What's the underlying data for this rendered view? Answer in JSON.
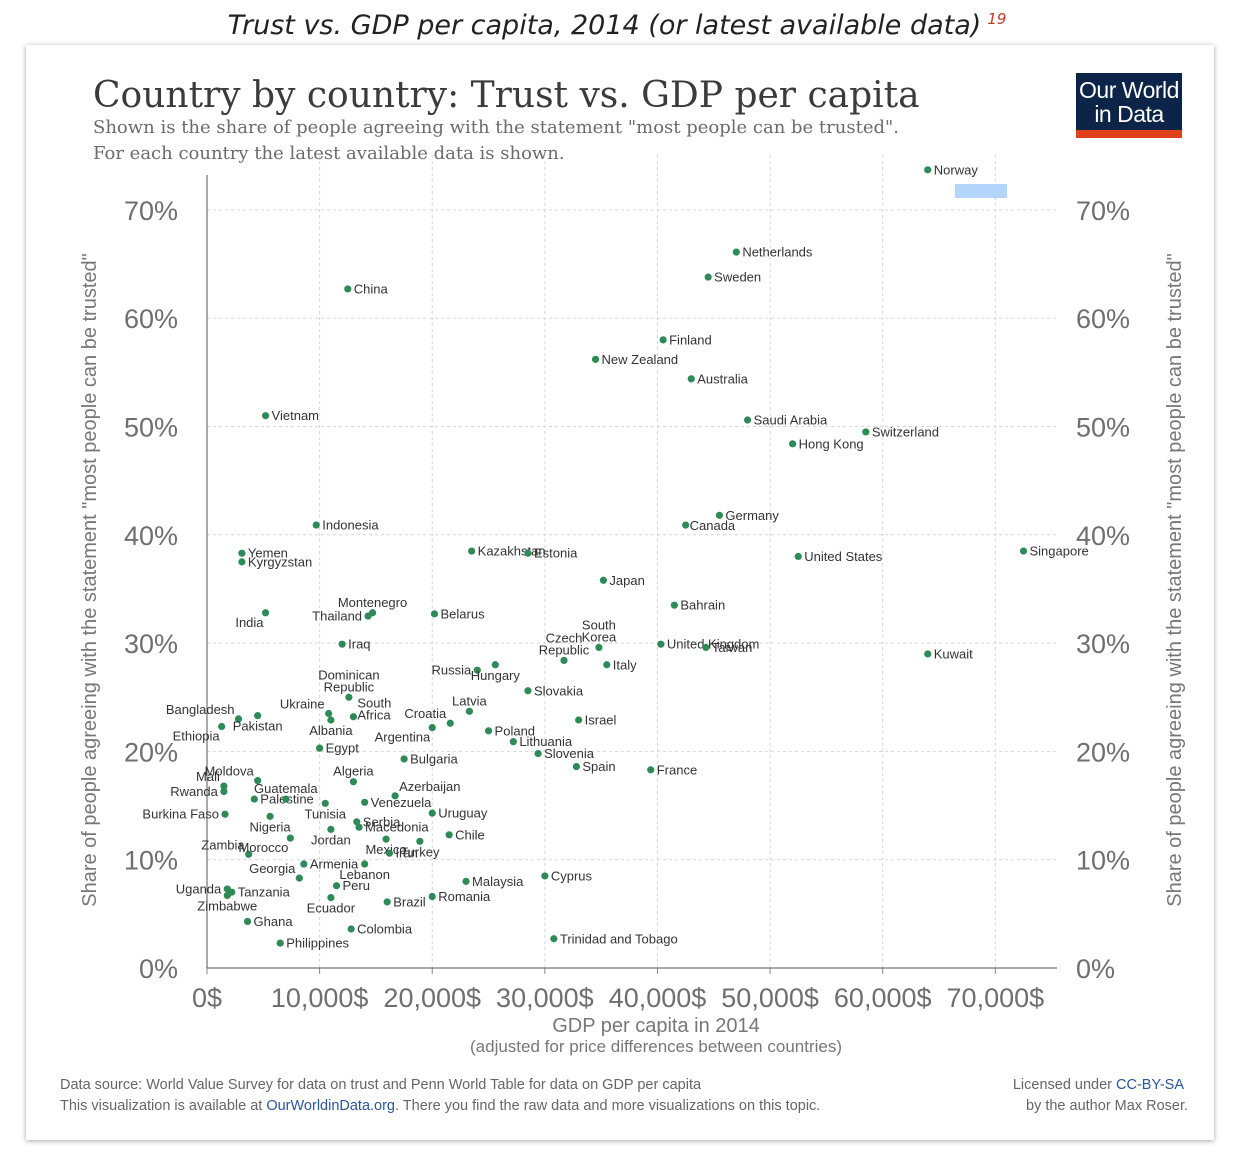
{
  "caption": {
    "text": "Trust vs. GDP per capita, 2014 (or latest available data)",
    "footnote": "19"
  },
  "logo": {
    "line1": "Our World",
    "line2": "in Data",
    "bg_color": "#0b2447",
    "accent_color": "#e0401c"
  },
  "footer": {
    "source": "Data source: World Value Survey for data on trust and Penn World Table for data on GDP per capita",
    "available_prefix": "This visualization is available at ",
    "available_link": "OurWorldinData.org",
    "available_suffix": ". There you find the raw data and more visualizations on this topic.",
    "license_prefix": "Licensed under ",
    "license_link": "CC-BY-SA",
    "author": "by the author Max Roser."
  },
  "chart_data": {
    "type": "scatter",
    "title": "Country by country: Trust vs. GDP per capita",
    "subtitle_lines": [
      "Shown is the share of people agreeing with the statement \"most people can be trusted\".",
      "For each country the latest available data is shown."
    ],
    "xlabel": "GDP per capita in 2014",
    "xlabel_note": "(adjusted for price differences between countries)",
    "ylabel": "Share of people agreeing with the statement \"most people can be trusted\"",
    "xlim": [
      0,
      75000
    ],
    "ylim": [
      0,
      70
    ],
    "x_ticks": [
      0,
      10000,
      20000,
      30000,
      40000,
      50000,
      60000,
      70000
    ],
    "x_tick_labels": [
      "0$",
      "10,000$",
      "20,000$",
      "30,000$",
      "40,000$",
      "50,000$",
      "60,000$",
      "70,000$"
    ],
    "y_ticks": [
      0,
      10,
      20,
      30,
      40,
      50,
      60,
      70
    ],
    "y_tick_labels": [
      "0%",
      "10%",
      "20%",
      "30%",
      "40%",
      "50%",
      "60%",
      "70%"
    ],
    "grid": true,
    "point_color": "#2e8b57",
    "points": [
      {
        "label": "Norway",
        "x": 64000,
        "y": 73.7
      },
      {
        "label": "Netherlands",
        "x": 47000,
        "y": 66.1
      },
      {
        "label": "Sweden",
        "x": 44500,
        "y": 63.8
      },
      {
        "label": "China",
        "x": 12500,
        "y": 62.7
      },
      {
        "label": "Finland",
        "x": 40500,
        "y": 58.0
      },
      {
        "label": "New Zealand",
        "x": 34500,
        "y": 56.2
      },
      {
        "label": "Australia",
        "x": 43000,
        "y": 54.4
      },
      {
        "label": "Vietnam",
        "x": 5200,
        "y": 51.0
      },
      {
        "label": "Saudi Arabia",
        "x": 48000,
        "y": 50.6
      },
      {
        "label": "Switzerland",
        "x": 58500,
        "y": 49.5
      },
      {
        "label": "Hong Kong",
        "x": 52000,
        "y": 48.4
      },
      {
        "label": "Germany",
        "x": 45500,
        "y": 41.8
      },
      {
        "label": "Canada",
        "x": 42500,
        "y": 40.9
      },
      {
        "label": "Indonesia",
        "x": 9700,
        "y": 40.9
      },
      {
        "label": "Yemen",
        "x": 3100,
        "y": 38.3
      },
      {
        "label": "Kyrgyzstan",
        "x": 3100,
        "y": 37.5
      },
      {
        "label": "Kazakhstan",
        "x": 23500,
        "y": 38.5
      },
      {
        "label": "Estonia",
        "x": 28500,
        "y": 38.3
      },
      {
        "label": "United States",
        "x": 52500,
        "y": 38.0
      },
      {
        "label": "Singapore",
        "x": 72500,
        "y": 38.5
      },
      {
        "label": "Japan",
        "x": 35200,
        "y": 35.8
      },
      {
        "label": "Bahrain",
        "x": 41500,
        "y": 33.5
      },
      {
        "label": "India",
        "x": 5200,
        "y": 32.8
      },
      {
        "label": "Thailand",
        "x": 14300,
        "y": 32.5
      },
      {
        "label": "Montenegro",
        "x": 14700,
        "y": 32.8
      },
      {
        "label": "Belarus",
        "x": 20200,
        "y": 32.7
      },
      {
        "label": "Iraq",
        "x": 12000,
        "y": 29.9
      },
      {
        "label": "South Korea",
        "x": 34800,
        "y": 29.6
      },
      {
        "label": "Czech Republic",
        "x": 31700,
        "y": 28.4
      },
      {
        "label": "United Kingdom",
        "x": 40300,
        "y": 29.9
      },
      {
        "label": "Taiwan",
        "x": 44300,
        "y": 29.6
      },
      {
        "label": "Kuwait",
        "x": 64000,
        "y": 29.0
      },
      {
        "label": "Italy",
        "x": 35500,
        "y": 28.0
      },
      {
        "label": "Russia",
        "x": 24000,
        "y": 27.5
      },
      {
        "label": "Hungary",
        "x": 25600,
        "y": 28.0
      },
      {
        "label": "Dominican Republic",
        "x": 12600,
        "y": 25.0
      },
      {
        "label": "Slovakia",
        "x": 28500,
        "y": 25.6
      },
      {
        "label": "Bangladesh",
        "x": 2800,
        "y": 23.0
      },
      {
        "label": "Ukraine",
        "x": 10800,
        "y": 23.5
      },
      {
        "label": "Pakistan",
        "x": 4500,
        "y": 23.3
      },
      {
        "label": "Ethiopia",
        "x": 1300,
        "y": 22.3
      },
      {
        "label": "Albania",
        "x": 11000,
        "y": 22.9
      },
      {
        "label": "South Africa",
        "x": 13000,
        "y": 23.2
      },
      {
        "label": "Latvia",
        "x": 23300,
        "y": 23.7
      },
      {
        "label": "Croatia",
        "x": 21600,
        "y": 22.6
      },
      {
        "label": "Argentina",
        "x": 20000,
        "y": 22.2
      },
      {
        "label": "Poland",
        "x": 25000,
        "y": 21.9
      },
      {
        "label": "Israel",
        "x": 33000,
        "y": 22.9
      },
      {
        "label": "Lithuania",
        "x": 27200,
        "y": 20.9
      },
      {
        "label": "Egypt",
        "x": 10000,
        "y": 20.3
      },
      {
        "label": "Bulgaria",
        "x": 17500,
        "y": 19.3
      },
      {
        "label": "Slovenia",
        "x": 29400,
        "y": 19.8
      },
      {
        "label": "Spain",
        "x": 32800,
        "y": 18.6
      },
      {
        "label": "France",
        "x": 39400,
        "y": 18.3
      },
      {
        "label": "Moldova",
        "x": 4500,
        "y": 17.3
      },
      {
        "label": "Algeria",
        "x": 13000,
        "y": 17.2
      },
      {
        "label": "Mali",
        "x": 1500,
        "y": 16.8
      },
      {
        "label": "Rwanda",
        "x": 1500,
        "y": 16.3
      },
      {
        "label": "Palestine",
        "x": 4200,
        "y": 15.6
      },
      {
        "label": "Guatemala",
        "x": 7000,
        "y": 15.6
      },
      {
        "label": "Azerbaijan",
        "x": 16700,
        "y": 15.9
      },
      {
        "label": "Venezuela",
        "x": 14000,
        "y": 15.3
      },
      {
        "label": "Burkina Faso",
        "x": 1600,
        "y": 14.2
      },
      {
        "label": "Nigeria",
        "x": 5600,
        "y": 14.0
      },
      {
        "label": "Tunisia",
        "x": 10500,
        "y": 15.2
      },
      {
        "label": "Serbia",
        "x": 13300,
        "y": 13.5
      },
      {
        "label": "Uruguay",
        "x": 20000,
        "y": 14.3
      },
      {
        "label": "Macedonia",
        "x": 13500,
        "y": 13.0
      },
      {
        "label": "Jordan",
        "x": 11000,
        "y": 12.8
      },
      {
        "label": "Chile",
        "x": 21500,
        "y": 12.3
      },
      {
        "label": "Zambia",
        "x": 3700,
        "y": 10.5
      },
      {
        "label": "Morocco",
        "x": 7400,
        "y": 12.0
      },
      {
        "label": "Mexico",
        "x": 15900,
        "y": 11.9
      },
      {
        "label": "Iran",
        "x": 16200,
        "y": 10.6
      },
      {
        "label": "Turkey",
        "x": 18900,
        "y": 11.7
      },
      {
        "label": "Armenia",
        "x": 8600,
        "y": 9.6
      },
      {
        "label": "Lebanon",
        "x": 14000,
        "y": 9.6
      },
      {
        "label": "Georgia",
        "x": 8200,
        "y": 8.3
      },
      {
        "label": "Cyprus",
        "x": 30000,
        "y": 8.5
      },
      {
        "label": "Malaysia",
        "x": 23000,
        "y": 8.0
      },
      {
        "label": "Uganda",
        "x": 1800,
        "y": 7.3
      },
      {
        "label": "Tanzania",
        "x": 2200,
        "y": 7.0
      },
      {
        "label": "Zimbabwe",
        "x": 1800,
        "y": 6.7
      },
      {
        "label": "Peru",
        "x": 11500,
        "y": 7.6
      },
      {
        "label": "Ecuador",
        "x": 11000,
        "y": 6.5
      },
      {
        "label": "Romania",
        "x": 20000,
        "y": 6.6
      },
      {
        "label": "Brazil",
        "x": 16000,
        "y": 6.1
      },
      {
        "label": "Ghana",
        "x": 3600,
        "y": 4.3
      },
      {
        "label": "Colombia",
        "x": 12800,
        "y": 3.6
      },
      {
        "label": "Philippines",
        "x": 6500,
        "y": 2.3
      },
      {
        "label": "Trinidad and Tobago",
        "x": 30800,
        "y": 2.7
      }
    ]
  }
}
